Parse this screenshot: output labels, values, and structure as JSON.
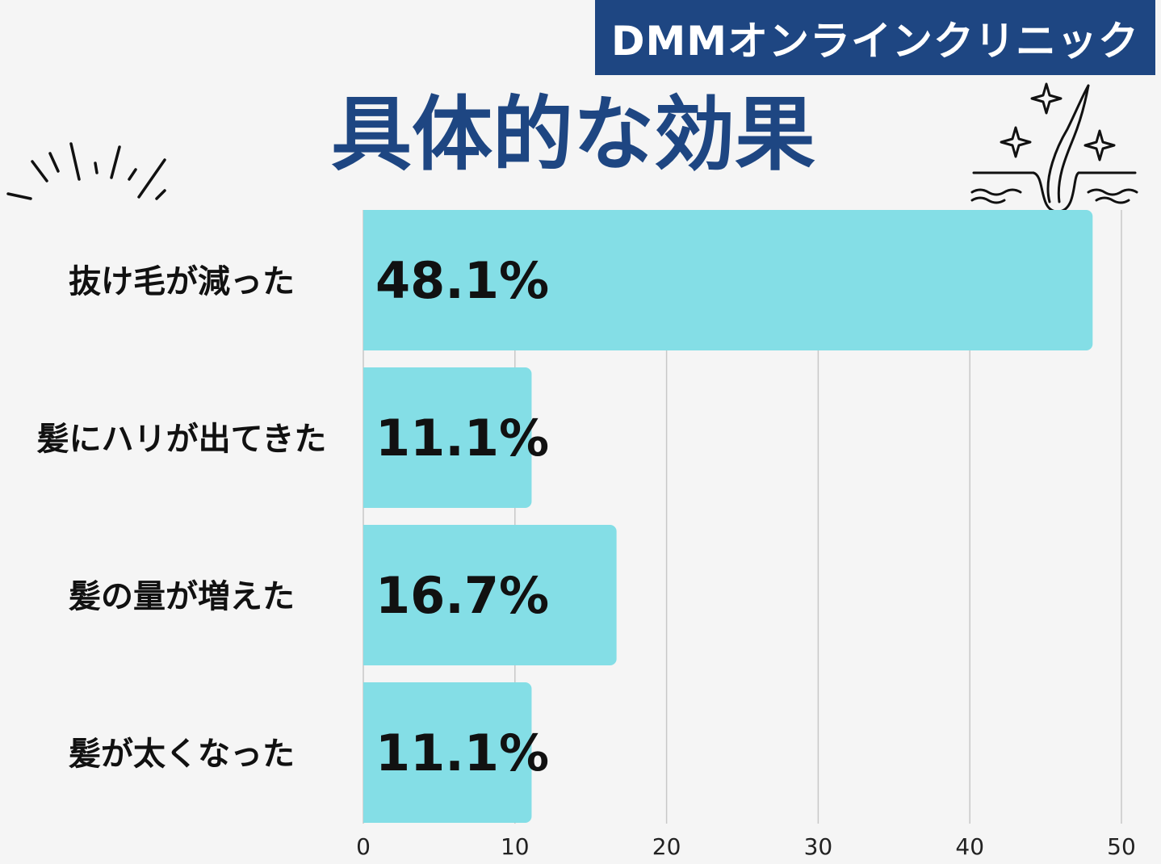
{
  "brand": {
    "label": "DMMオンラインクリニック"
  },
  "icons": {
    "burst": "burst-lines-icon",
    "hair": "hair-follicle-sparkle-icon"
  },
  "colors": {
    "banner": "#1e4682",
    "title": "#1e4682",
    "bar": "#84dee6",
    "grid": "#c8c8c8",
    "text": "#111111"
  },
  "chart_data": {
    "type": "bar",
    "orientation": "horizontal",
    "title": "具体的な効果",
    "categories": [
      "抜け毛が減った",
      "髪にハリが出てきた",
      "髪の量が増えた",
      "髪が太くなった"
    ],
    "values": [
      48.1,
      11.1,
      16.7,
      11.1
    ],
    "value_labels": [
      "48.1%",
      "11.1%",
      "16.7%",
      "11.1%"
    ],
    "xlim": [
      0,
      50
    ],
    "xticks": [
      0,
      10,
      20,
      30,
      40,
      50
    ],
    "xtick_labels": [
      "0",
      "10",
      "20",
      "30",
      "40",
      "50"
    ],
    "grid": "vertical"
  }
}
